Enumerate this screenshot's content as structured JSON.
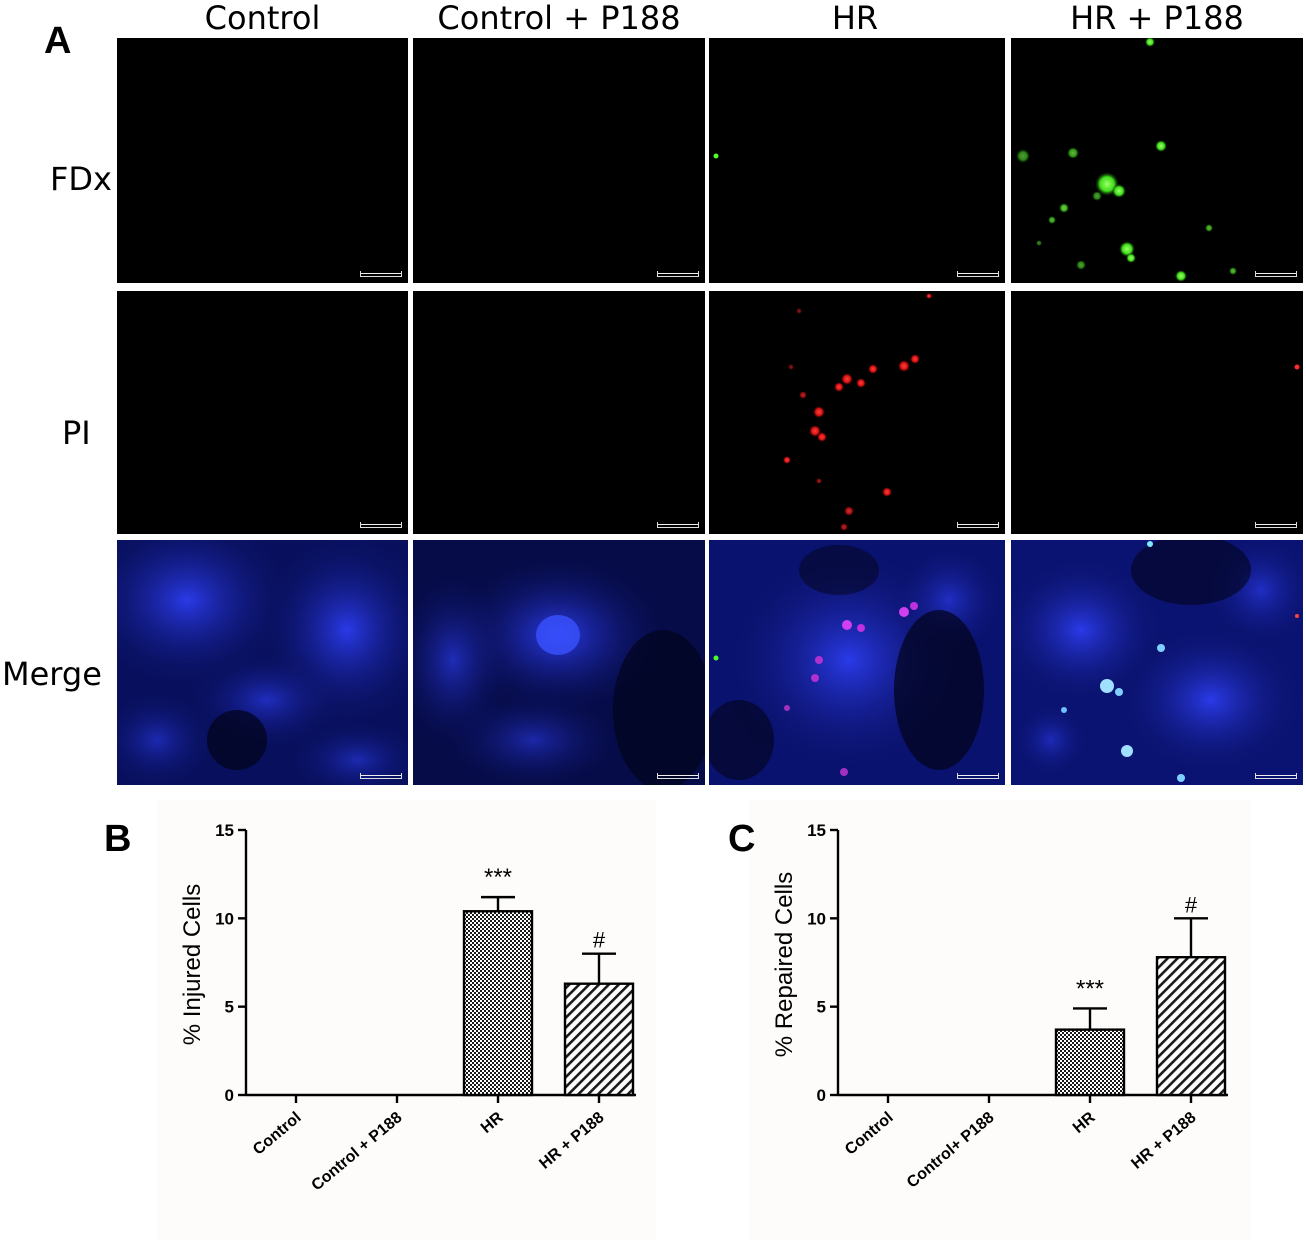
{
  "panel_a": {
    "letter": "A",
    "columns": [
      "Control",
      "Control + P188",
      "HR",
      "HR + P188"
    ],
    "rows": [
      "FDx",
      "PI",
      "Merge"
    ]
  },
  "colors": {
    "fdx_green": "#5cff3a",
    "pi_red": "#ff2020",
    "dapi_blue": "#1f2bd0",
    "bar_edge": "#000000"
  },
  "chart_data": [
    {
      "letter": "B",
      "type": "bar",
      "ylabel": "% Injured Cells",
      "categories": [
        "Control",
        "Control + P188",
        "HR",
        "HR + P188"
      ],
      "values": [
        0,
        0,
        10.4,
        6.3
      ],
      "errors": [
        0,
        0,
        0.8,
        1.7
      ],
      "annotations": [
        "",
        "",
        "***",
        "#"
      ],
      "patterns": [
        "none",
        "none",
        "checker",
        "diagonal"
      ],
      "ylim": [
        0,
        15
      ],
      "yticks": [
        "0",
        "5",
        "10",
        "15"
      ]
    },
    {
      "letter": "C",
      "type": "bar",
      "ylabel": "% Repaired Cells",
      "categories": [
        "Control",
        "Control+ P188",
        "HR",
        "HR + P188"
      ],
      "values": [
        0,
        0,
        3.7,
        7.8
      ],
      "errors": [
        0,
        0,
        1.2,
        2.2
      ],
      "annotations": [
        "",
        "",
        "***",
        "#"
      ],
      "patterns": [
        "none",
        "none",
        "checker",
        "diagonal"
      ],
      "ylim": [
        0,
        15
      ],
      "yticks": [
        "0",
        "5",
        "10",
        "15"
      ]
    }
  ]
}
